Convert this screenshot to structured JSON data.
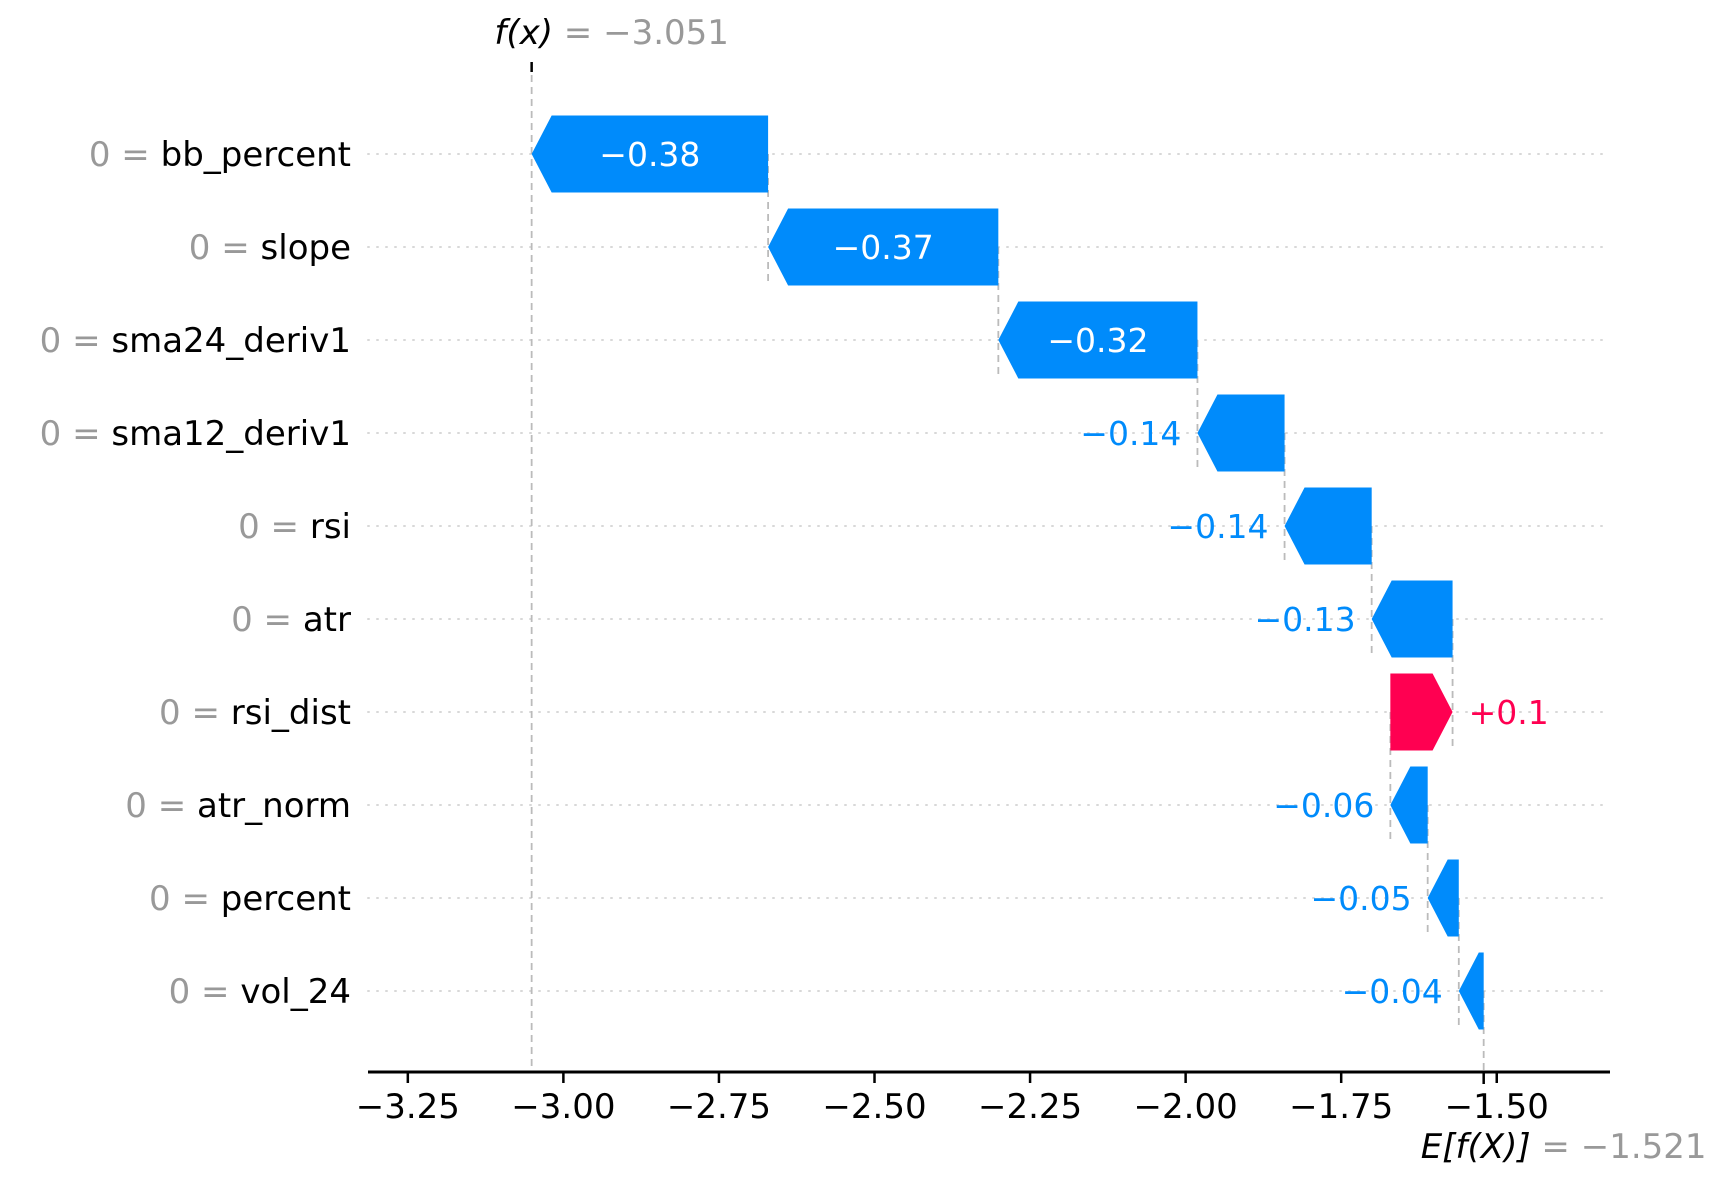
{
  "chart_data": {
    "type": "bar",
    "subtype": "shap-waterfall",
    "fx": {
      "math": "f(x)",
      "rest": " = −3.051",
      "value": -3.051
    },
    "base": {
      "math": "E[f(X)]",
      "rest": " = −1.521",
      "value": -1.521
    },
    "features": [
      {
        "value_label": "0",
        "name": "bb_percent",
        "shap": -0.38,
        "shap_label": "−0.38"
      },
      {
        "value_label": "0",
        "name": "slope",
        "shap": -0.37,
        "shap_label": "−0.37"
      },
      {
        "value_label": "0",
        "name": "sma24_deriv1",
        "shap": -0.32,
        "shap_label": "−0.32"
      },
      {
        "value_label": "0",
        "name": "sma12_deriv1",
        "shap": -0.14,
        "shap_label": "−0.14"
      },
      {
        "value_label": "0",
        "name": "rsi",
        "shap": -0.14,
        "shap_label": "−0.14"
      },
      {
        "value_label": "0",
        "name": "atr",
        "shap": -0.13,
        "shap_label": "−0.13"
      },
      {
        "value_label": "0",
        "name": "rsi_dist",
        "shap": 0.1,
        "shap_label": "+0.1"
      },
      {
        "value_label": "0",
        "name": "atr_norm",
        "shap": -0.06,
        "shap_label": "−0.06"
      },
      {
        "value_label": "0",
        "name": "percent",
        "shap": -0.05,
        "shap_label": "−0.05"
      },
      {
        "value_label": "0",
        "name": "vol_24",
        "shap": -0.04,
        "shap_label": "−0.04"
      }
    ],
    "x_axis": {
      "lim": [
        -3.314,
        -1.318
      ],
      "ticks": [
        {
          "v": -3.25,
          "label": "−3.25"
        },
        {
          "v": -3.0,
          "label": "−3.00"
        },
        {
          "v": -2.75,
          "label": "−2.75"
        },
        {
          "v": -2.5,
          "label": "−2.50"
        },
        {
          "v": -2.25,
          "label": "−2.25"
        },
        {
          "v": -2.0,
          "label": "−2.00"
        },
        {
          "v": -1.75,
          "label": "−1.75"
        },
        {
          "v": -1.5,
          "label": "−1.50"
        }
      ],
      "grid": "horizontal-dotted"
    },
    "legend": "none",
    "colors": {
      "positive": "#ff0051",
      "negative": "#008bfb",
      "inside_label": "#ffffff",
      "muted_text": "#999999",
      "connector": "#bbbbbb",
      "gridline": "#d8d8d8",
      "axis": "#000000"
    }
  }
}
